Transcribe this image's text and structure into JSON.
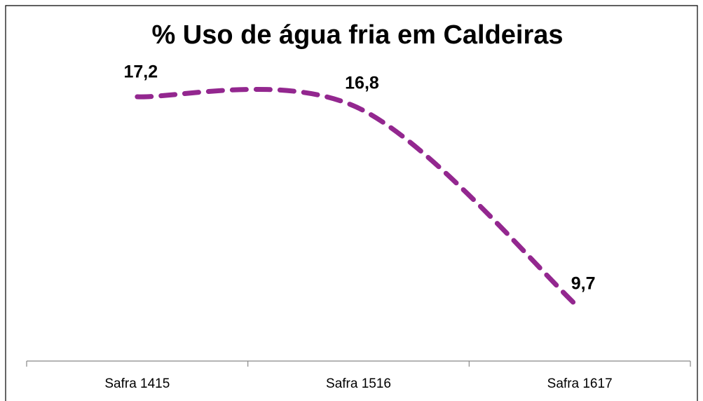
{
  "chart_data": {
    "type": "line",
    "title": "% Uso de água fria em Caldeiras",
    "categories": [
      "Safra 1415",
      "Safra 1516",
      "Safra 1617"
    ],
    "values": [
      17.2,
      16.8,
      9.7
    ],
    "value_labels": [
      "17,2",
      "16,8",
      "9,7"
    ],
    "color": "#93278f",
    "smooth": true,
    "dashed": true
  }
}
